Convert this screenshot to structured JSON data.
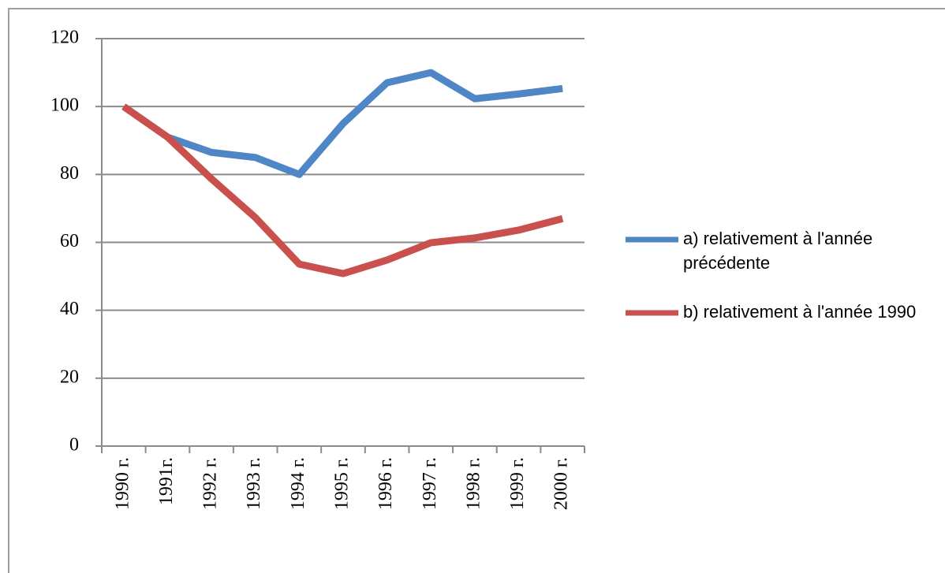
{
  "chart_data": {
    "type": "line",
    "categories": [
      "1990 г.",
      "1991г.",
      "1992 г.",
      "1993 г.",
      "1994 г.",
      "1995 г.",
      "1996 г.",
      "1997 г.",
      "1998 г.",
      "1999 г.",
      "2000 г."
    ],
    "series": [
      {
        "name": "a) relativement à l'année précédente",
        "color": "#4f86c6",
        "values": [
          100,
          91,
          86.5,
          85,
          80,
          95,
          107,
          110,
          102.3,
          103.7,
          105.3
        ]
      },
      {
        "name": "b) relativement à l'année 1990",
        "color": "#c9504c",
        "values": [
          100,
          91,
          78.7,
          67.3,
          53.6,
          50.8,
          54.8,
          59.9,
          61.3,
          63.6,
          67
        ]
      }
    ],
    "ylim": [
      0,
      120
    ],
    "yticks": [
      0,
      20,
      40,
      60,
      80,
      100,
      120
    ],
    "grid": true,
    "legend": "right"
  }
}
